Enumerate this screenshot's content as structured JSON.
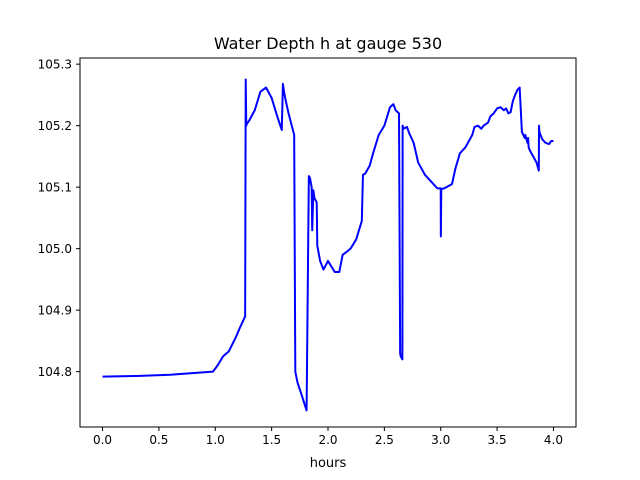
{
  "chart_data": {
    "type": "line",
    "title": "Water Depth h at gauge 530",
    "xlabel": "hours",
    "ylabel": "",
    "xlim": [
      -0.2,
      4.2
    ],
    "ylim": [
      104.71,
      105.31
    ],
    "xticks": [
      0.0,
      0.5,
      1.0,
      1.5,
      2.0,
      2.5,
      3.0,
      3.5,
      4.0
    ],
    "xtick_labels": [
      "0.0",
      "0.5",
      "1.0",
      "1.5",
      "2.0",
      "2.5",
      "3.0",
      "3.5",
      "4.0"
    ],
    "yticks": [
      104.8,
      104.9,
      105.0,
      105.1,
      105.2,
      105.3
    ],
    "ytick_labels": [
      "104.8",
      "104.9",
      "105.0",
      "105.1",
      "105.2",
      "105.3"
    ],
    "grid": false,
    "series": [
      {
        "color": "#0000ff",
        "x": [
          0.0,
          0.3,
          0.6,
          0.75,
          0.98,
          1.02,
          1.07,
          1.12,
          1.18,
          1.22,
          1.265,
          1.27,
          1.275,
          1.28,
          1.3,
          1.35,
          1.4,
          1.45,
          1.5,
          1.55,
          1.59,
          1.6,
          1.61,
          1.62,
          1.65,
          1.7,
          1.71,
          1.73,
          1.77,
          1.81,
          1.83,
          1.84,
          1.855,
          1.86,
          1.87,
          1.88,
          1.9,
          1.905,
          1.93,
          1.96,
          2.0,
          2.03,
          2.06,
          2.1,
          2.13,
          2.16,
          2.2,
          2.25,
          2.3,
          2.31,
          2.33,
          2.37,
          2.4,
          2.45,
          2.5,
          2.55,
          2.58,
          2.6,
          2.63,
          2.64,
          2.645,
          2.66,
          2.662,
          2.67,
          2.7,
          2.72,
          2.76,
          2.8,
          2.86,
          2.92,
          2.97,
          3.0,
          3.001,
          3.005,
          3.03,
          3.1,
          3.13,
          3.17,
          3.22,
          3.28,
          3.3,
          3.33,
          3.36,
          3.38,
          3.42,
          3.44,
          3.47,
          3.5,
          3.53,
          3.56,
          3.58,
          3.6,
          3.62,
          3.64,
          3.66,
          3.68,
          3.7,
          3.72,
          3.745,
          3.75,
          3.77,
          3.775,
          3.78,
          3.79,
          3.82,
          3.85,
          3.87,
          3.872,
          3.875,
          3.9,
          3.93,
          3.96,
          3.98,
          4.0
        ],
        "y": [
          104.792,
          104.793,
          104.795,
          104.797,
          104.8,
          104.81,
          104.825,
          104.833,
          104.855,
          104.872,
          104.89,
          105.275,
          105.2,
          105.203,
          105.208,
          105.225,
          105.255,
          105.262,
          105.245,
          105.215,
          105.193,
          105.268,
          105.255,
          105.245,
          105.22,
          105.185,
          104.8,
          104.782,
          104.76,
          104.737,
          105.118,
          105.115,
          105.1,
          105.03,
          105.095,
          105.082,
          105.075,
          105.005,
          104.98,
          104.966,
          104.98,
          104.971,
          104.962,
          104.962,
          104.99,
          104.994,
          105.0,
          105.015,
          105.045,
          105.12,
          105.122,
          105.135,
          105.155,
          105.185,
          105.2,
          105.23,
          105.235,
          105.225,
          105.22,
          104.83,
          104.825,
          104.82,
          105.2,
          105.195,
          105.198,
          105.188,
          105.172,
          105.14,
          105.12,
          105.108,
          105.098,
          105.098,
          105.02,
          105.097,
          105.098,
          105.105,
          105.13,
          105.155,
          105.165,
          105.185,
          105.198,
          105.2,
          105.195,
          105.2,
          105.205,
          105.215,
          105.22,
          105.228,
          105.23,
          105.225,
          105.228,
          105.22,
          105.222,
          105.24,
          105.25,
          105.258,
          105.262,
          105.19,
          105.18,
          105.185,
          105.172,
          105.18,
          105.165,
          105.16,
          105.15,
          105.14,
          105.127,
          105.2,
          105.19,
          105.178,
          105.172,
          105.17,
          105.175,
          105.175
        ]
      }
    ]
  }
}
